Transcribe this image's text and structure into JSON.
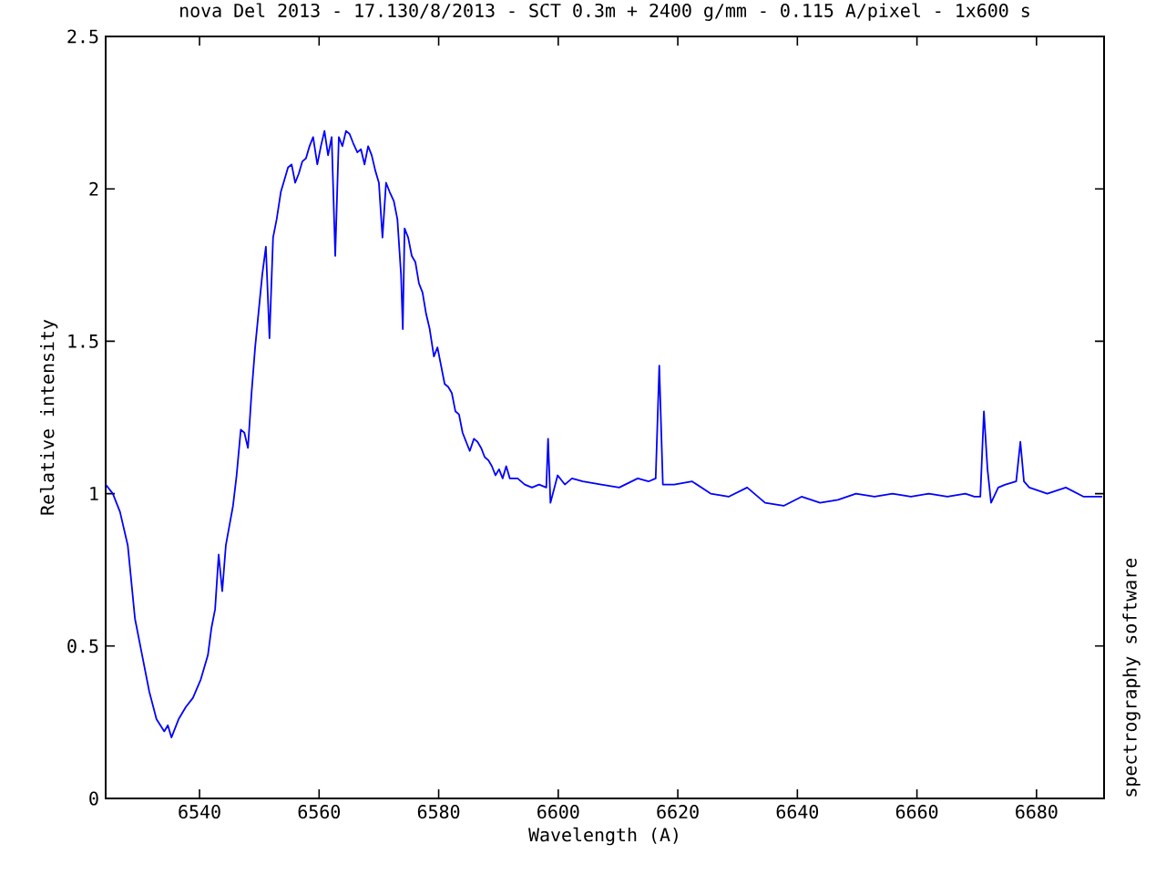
{
  "chart_data": {
    "type": "line",
    "title": "nova Del 2013 - 17.130/8/2013 - SCT 0.3m + 2400 g/mm - 0.115 A/pixel - 1x600 s",
    "xlabel": "Wavelength (A)",
    "ylabel": "Relative intensity",
    "annotations": [
      "spectrography software"
    ],
    "xlim": [
      6524.3,
      6691.3
    ],
    "ylim": [
      0,
      2.5
    ],
    "xticks": [
      6540,
      6560,
      6580,
      6600,
      6620,
      6640,
      6660,
      6680
    ],
    "yticks": [
      0,
      0.5,
      1,
      1.5,
      2,
      2.5
    ],
    "marker": "none",
    "line_style": "solid",
    "x": [
      6524.3,
      6525.5,
      6526.7,
      6528.0,
      6529.2,
      6530.4,
      6531.6,
      6532.8,
      6534.1,
      6534.7,
      6535.3,
      6536.5,
      6537.7,
      6538.9,
      6540.2,
      6541.4,
      6542.0,
      6542.6,
      6543.2,
      6543.8,
      6544.4,
      6545.6,
      6546.2,
      6546.9,
      6547.5,
      6548.1,
      6548.7,
      6549.3,
      6549.9,
      6550.5,
      6551.1,
      6551.7,
      6552.3,
      6552.9,
      6553.6,
      6554.2,
      6554.8,
      6555.4,
      6556.0,
      6556.6,
      6557.2,
      6557.8,
      6558.4,
      6559.0,
      6559.7,
      6560.3,
      6560.9,
      6561.5,
      6562.1,
      6562.7,
      6563.3,
      6563.9,
      6564.5,
      6565.1,
      6565.7,
      6566.4,
      6567.0,
      6567.6,
      6568.2,
      6568.8,
      6569.4,
      6570.0,
      6570.6,
      6571.2,
      6571.8,
      6572.5,
      6573.1,
      6573.7,
      6574.0,
      6574.3,
      6574.9,
      6575.5,
      6576.1,
      6576.7,
      6577.3,
      6577.9,
      6578.5,
      6579.2,
      6579.8,
      6580.4,
      6581.0,
      6581.6,
      6582.2,
      6582.8,
      6583.4,
      6584.0,
      6584.6,
      6585.2,
      6585.9,
      6586.5,
      6587.1,
      6587.7,
      6588.3,
      6588.9,
      6589.5,
      6590.1,
      6590.7,
      6591.3,
      6591.9,
      6593.2,
      6594.4,
      6595.6,
      6596.8,
      6598.0,
      6598.3,
      6598.7,
      6599.9,
      6601.1,
      6602.3,
      6604.1,
      6607.2,
      6610.2,
      6613.3,
      6615.1,
      6616.3,
      6616.9,
      6617.5,
      6619.4,
      6622.4,
      6625.5,
      6628.5,
      6631.6,
      6634.6,
      6637.7,
      6640.7,
      6643.8,
      6646.8,
      6649.8,
      6652.9,
      6655.9,
      6659.0,
      6662.0,
      6665.1,
      6668.1,
      6669.6,
      6670.6,
      6671.2,
      6671.8,
      6672.4,
      6673.6,
      6674.8,
      6676.6,
      6677.3,
      6677.9,
      6678.8,
      6681.8,
      6684.9,
      6687.9,
      6691.0
    ],
    "series": [
      {
        "color": "#0000ff",
        "values": [
          1.03,
          1.0,
          0.94,
          0.83,
          0.59,
          0.47,
          0.35,
          0.26,
          0.22,
          0.24,
          0.2,
          0.26,
          0.3,
          0.33,
          0.39,
          0.47,
          0.56,
          0.62,
          0.8,
          0.68,
          0.83,
          0.96,
          1.06,
          1.21,
          1.2,
          1.15,
          1.33,
          1.48,
          1.6,
          1.72,
          1.81,
          1.51,
          1.84,
          1.9,
          1.99,
          2.03,
          2.07,
          2.08,
          2.02,
          2.05,
          2.09,
          2.1,
          2.14,
          2.17,
          2.08,
          2.14,
          2.19,
          2.11,
          2.17,
          1.78,
          2.17,
          2.14,
          2.19,
          2.18,
          2.15,
          2.12,
          2.13,
          2.08,
          2.14,
          2.11,
          2.06,
          2.02,
          1.84,
          2.02,
          1.99,
          1.96,
          1.9,
          1.72,
          1.54,
          1.87,
          1.84,
          1.78,
          1.76,
          1.69,
          1.66,
          1.59,
          1.54,
          1.45,
          1.48,
          1.42,
          1.36,
          1.35,
          1.33,
          1.27,
          1.26,
          1.2,
          1.17,
          1.14,
          1.18,
          1.17,
          1.15,
          1.12,
          1.11,
          1.09,
          1.06,
          1.08,
          1.05,
          1.09,
          1.05,
          1.05,
          1.03,
          1.02,
          1.03,
          1.02,
          1.18,
          0.97,
          1.06,
          1.03,
          1.05,
          1.04,
          1.03,
          1.02,
          1.05,
          1.04,
          1.05,
          1.42,
          1.03,
          1.03,
          1.04,
          1.0,
          0.99,
          1.02,
          0.97,
          0.96,
          0.99,
          0.97,
          0.98,
          1.0,
          0.99,
          1.0,
          0.99,
          1.0,
          0.99,
          1.0,
          0.99,
          0.99,
          1.27,
          1.08,
          0.97,
          1.02,
          1.03,
          1.04,
          1.17,
          1.04,
          1.02,
          1.0,
          1.02,
          0.99,
          0.99
        ]
      }
    ]
  }
}
